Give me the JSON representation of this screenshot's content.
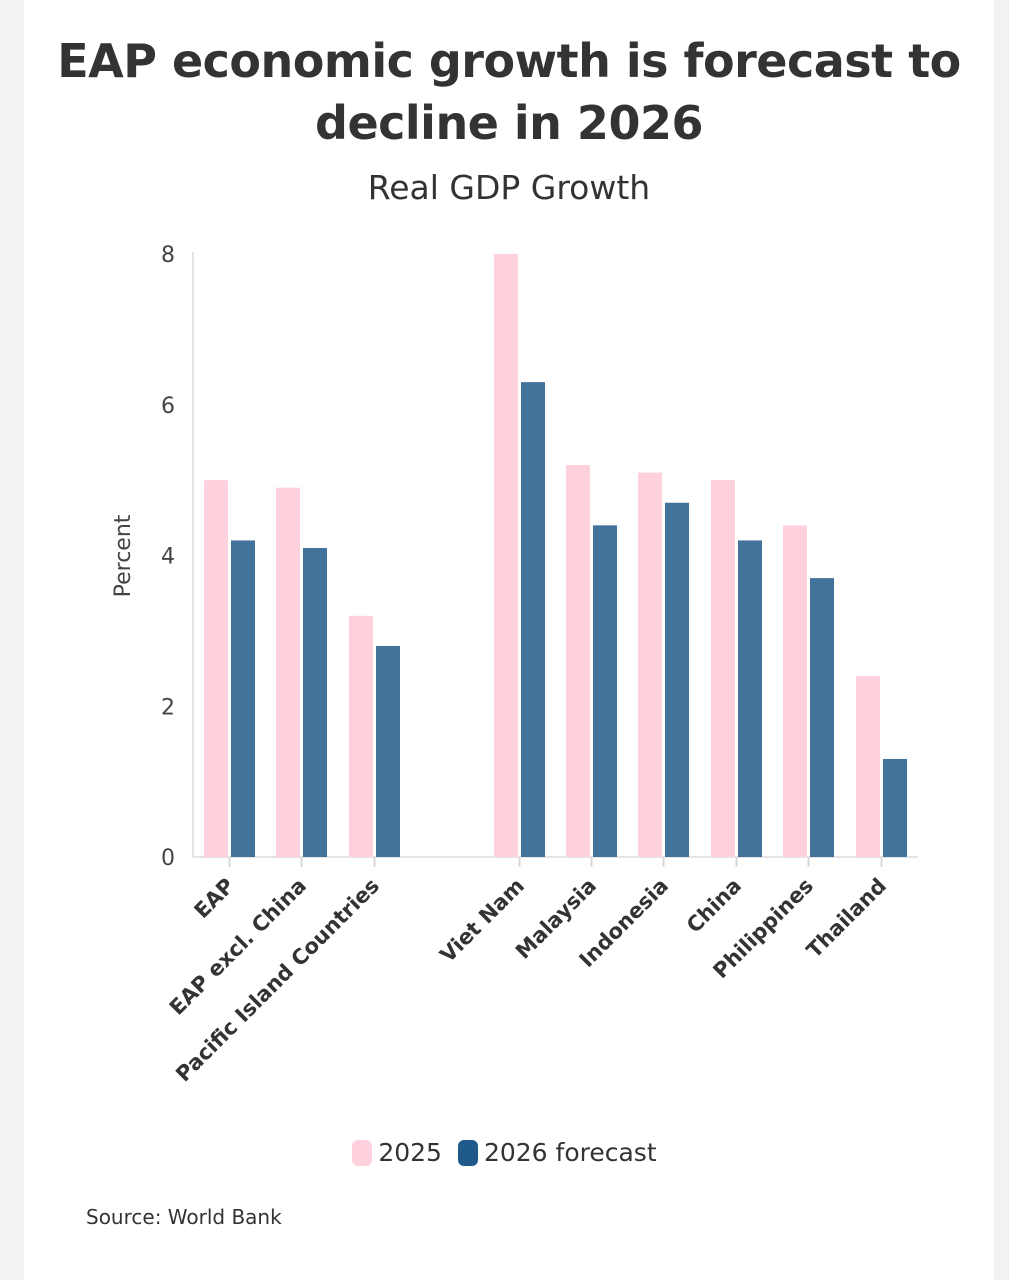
{
  "chart_data": {
    "type": "bar",
    "title": "EAP economic growth is forecast to decline in 2026",
    "subtitle": "Real GDP Growth",
    "ylabel": "Percent",
    "xlabel": "",
    "ylim": [
      0,
      8
    ],
    "yticks": [
      0,
      2,
      4,
      6,
      8
    ],
    "grid": false,
    "legend_position": "bottom",
    "categories": [
      "EAP",
      "EAP excl. China",
      "Pacific Island Countries",
      "Viet Nam",
      "Malaysia",
      "Indonesia",
      "China",
      "Philippines",
      "Thailand"
    ],
    "series": [
      {
        "name": "2025",
        "color": "#ffd1dc",
        "values": [
          5.0,
          4.9,
          3.2,
          8.0,
          5.2,
          5.1,
          5.0,
          4.4,
          2.4
        ]
      },
      {
        "name": "2026 forecast",
        "color": "#43739a",
        "values": [
          4.2,
          4.1,
          2.8,
          6.3,
          4.4,
          4.7,
          4.2,
          3.7,
          1.3
        ]
      }
    ],
    "source": "Source: World Bank"
  },
  "legend": {
    "item_2025": "2025",
    "item_2026": "2026 forecast",
    "swatch_2026_color": "#1f5a8a"
  }
}
